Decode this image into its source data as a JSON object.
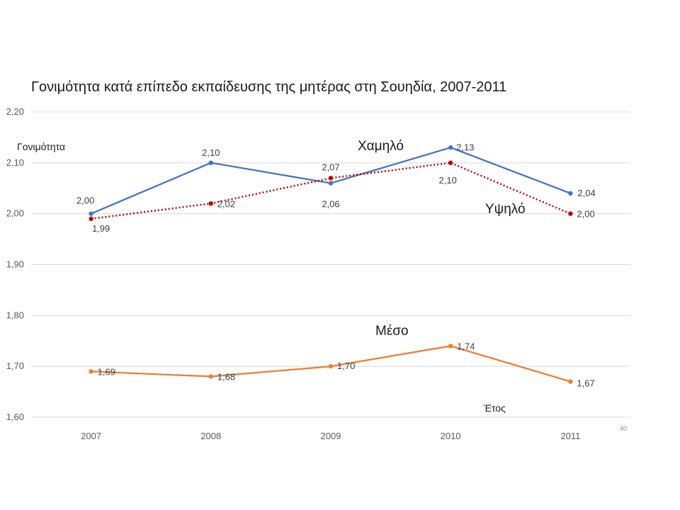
{
  "page_number": "40",
  "chart_data": {
    "type": "line",
    "title": "Γονιμότητα κατά επίπεδο εκπαίδευσης της μητέρας στη Σουηδία, 2007-2011",
    "xlabel": "Έτος",
    "ylabel": "Γονιμότητα",
    "categories": [
      "2007",
      "2008",
      "2009",
      "2010",
      "2011"
    ],
    "ylim": [
      1.6,
      2.2
    ],
    "yticks": [
      "1,60",
      "1,70",
      "1,80",
      "1,90",
      "2,00",
      "2,10",
      "2,20"
    ],
    "grid": true,
    "legend": "none",
    "series": [
      {
        "name": "Χαμηλό",
        "values": [
          2.0,
          2.1,
          2.06,
          2.13,
          2.04
        ],
        "labels": [
          "2,00",
          "2,10",
          "2,06",
          "2,13",
          "2,04"
        ],
        "color": "#4472c4",
        "style": "solid"
      },
      {
        "name": "Υψηλό",
        "values": [
          1.99,
          2.02,
          2.07,
          2.1,
          2.0
        ],
        "labels": [
          "1,99",
          "2,02",
          "2,07",
          "2,10",
          "2,00"
        ],
        "color": "#c00000",
        "style": "dotted"
      },
      {
        "name": "Μέσο",
        "values": [
          1.69,
          1.68,
          1.7,
          1.74,
          1.67
        ],
        "labels": [
          "1,69",
          "1,68",
          "1,70",
          "1,74",
          "1,67"
        ],
        "color": "#ed7d31",
        "style": "solid"
      }
    ]
  }
}
